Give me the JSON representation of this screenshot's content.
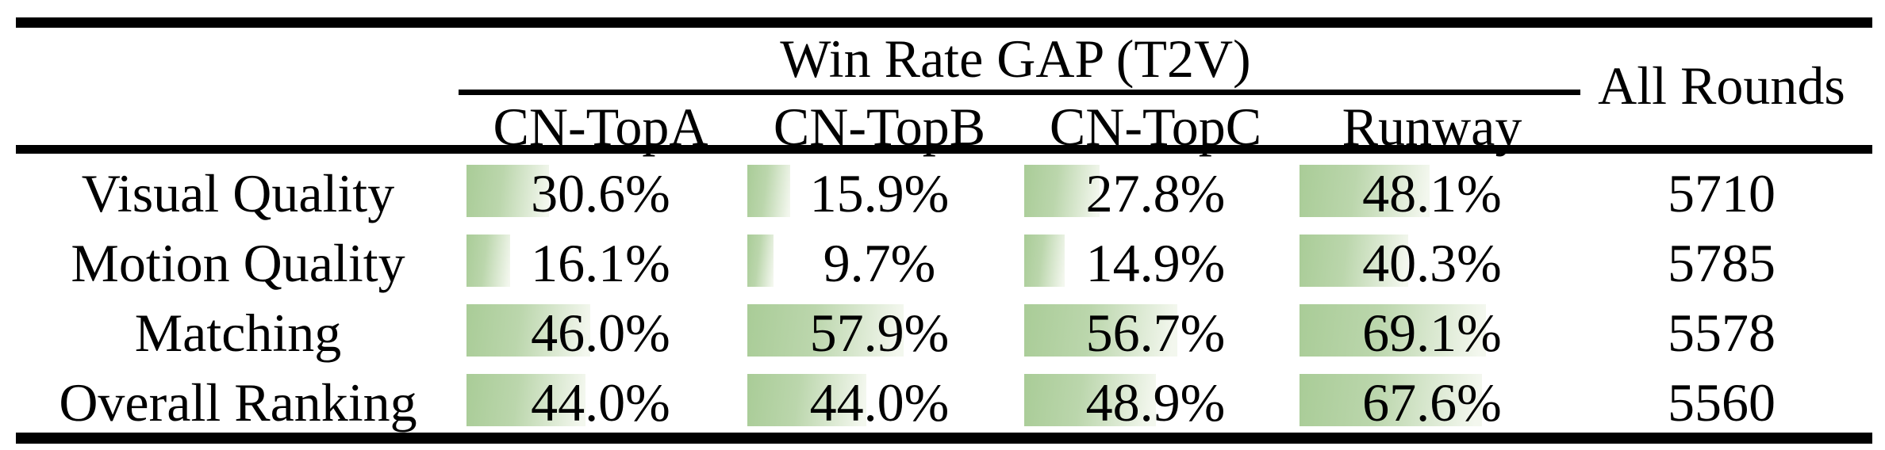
{
  "table": {
    "group_header": "Win Rate GAP (T2V)",
    "all_rounds_header": "All Rounds",
    "columns": [
      "CN-TopA",
      "CN-TopB",
      "CN-TopC",
      "Runway"
    ],
    "rows": [
      {
        "label": "Visual Quality",
        "win_rate_gap": [
          30.6,
          15.9,
          27.8,
          48.1
        ],
        "all_rounds": "5710"
      },
      {
        "label": "Motion Quality",
        "win_rate_gap": [
          16.1,
          9.7,
          14.9,
          40.3
        ],
        "all_rounds": "5785"
      },
      {
        "label": "Matching",
        "win_rate_gap": [
          46.0,
          57.9,
          56.7,
          69.1
        ],
        "all_rounds": "5578"
      },
      {
        "label": "Overall Ranking",
        "win_rate_gap": [
          44.0,
          44.0,
          48.9,
          67.6
        ],
        "all_rounds": "5560"
      }
    ],
    "bar_gradient_start": "#a9cc97",
    "bar_gradient_mid": "#bbd6ac",
    "bar_gradient_end": "#f3f7ee",
    "rule_color": "#000000",
    "text_color": "#000000"
  },
  "chart_data": {
    "type": "table",
    "title": "Win Rate GAP (T2V)",
    "columns": [
      "CN-TopA",
      "CN-TopB",
      "CN-TopC",
      "Runway",
      "All Rounds"
    ],
    "row_labels": [
      "Visual Quality",
      "Motion Quality",
      "Matching",
      "Overall Ranking"
    ],
    "series": [
      {
        "name": "Visual Quality",
        "win_rate_gap_percent": [
          30.6,
          15.9,
          27.8,
          48.1
        ],
        "all_rounds": 5710
      },
      {
        "name": "Motion Quality",
        "win_rate_gap_percent": [
          16.1,
          9.7,
          14.9,
          40.3
        ],
        "all_rounds": 5785
      },
      {
        "name": "Matching",
        "win_rate_gap_percent": [
          46.0,
          57.9,
          56.7,
          69.1
        ],
        "all_rounds": 5578
      },
      {
        "name": "Overall Ranking",
        "win_rate_gap_percent": [
          44.0,
          44.0,
          48.9,
          67.6
        ],
        "all_rounds": 5560
      }
    ],
    "value_range_percent": [
      0,
      100
    ],
    "bar_style": "in-cell horizontal data bars, width proportional to percent value, green fading to white"
  }
}
